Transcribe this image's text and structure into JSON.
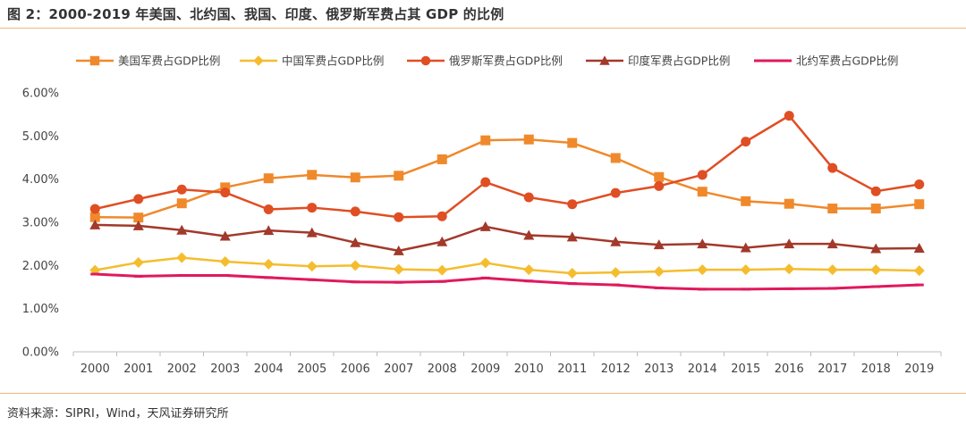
{
  "figure": {
    "title": "图 2：2000-2019 年美国、北约国、我国、印度、俄罗斯军费占其 GDP 的比例",
    "source": "资料来源：SIPRI，Wind，天风证券研究所"
  },
  "chart_data": {
    "type": "line",
    "title": "",
    "xlabel": "",
    "ylabel": "",
    "ylim": [
      0,
      6
    ],
    "yticks": [
      "0.00%",
      "1.00%",
      "2.00%",
      "3.00%",
      "4.00%",
      "5.00%",
      "6.00%"
    ],
    "grid": false,
    "legend": "top",
    "categories": [
      "2000",
      "2001",
      "2002",
      "2003",
      "2004",
      "2005",
      "2006",
      "2007",
      "2008",
      "2009",
      "2010",
      "2011",
      "2012",
      "2013",
      "2014",
      "2015",
      "2016",
      "2017",
      "2018",
      "2019"
    ],
    "series": [
      {
        "name": "美国军费占GDP比例",
        "color": "#f0892b",
        "marker": "square",
        "values": [
          3.12,
          3.11,
          3.44,
          3.81,
          4.02,
          4.1,
          4.04,
          4.08,
          4.46,
          4.9,
          4.92,
          4.84,
          4.49,
          4.05,
          3.71,
          3.49,
          3.43,
          3.32,
          3.32,
          3.42
        ]
      },
      {
        "name": "中国军费占GDP比例",
        "color": "#f5bd2e",
        "marker": "diamond",
        "values": [
          1.89,
          2.07,
          2.18,
          2.09,
          2.03,
          1.98,
          2.0,
          1.91,
          1.89,
          2.06,
          1.9,
          1.82,
          1.84,
          1.86,
          1.9,
          1.9,
          1.92,
          1.9,
          1.9,
          1.88
        ]
      },
      {
        "name": "俄罗斯军费占GDP比例",
        "color": "#e04e23",
        "marker": "circle",
        "values": [
          3.31,
          3.54,
          3.76,
          3.69,
          3.3,
          3.34,
          3.25,
          3.12,
          3.14,
          3.93,
          3.58,
          3.42,
          3.68,
          3.84,
          4.1,
          4.87,
          5.47,
          4.26,
          3.72,
          3.88
        ]
      },
      {
        "name": "印度军费占GDP比例",
        "color": "#a2392a",
        "marker": "triangle",
        "values": [
          2.94,
          2.92,
          2.82,
          2.68,
          2.81,
          2.76,
          2.53,
          2.34,
          2.55,
          2.9,
          2.7,
          2.66,
          2.55,
          2.48,
          2.5,
          2.41,
          2.5,
          2.5,
          2.39,
          2.4
        ]
      },
      {
        "name": "北约军费占GDP比例",
        "color": "#e0195e",
        "marker": "dash",
        "values": [
          1.8,
          1.75,
          1.77,
          1.77,
          1.72,
          1.67,
          1.62,
          1.61,
          1.63,
          1.71,
          1.64,
          1.58,
          1.55,
          1.48,
          1.45,
          1.45,
          1.46,
          1.47,
          1.51,
          1.55
        ]
      }
    ]
  }
}
